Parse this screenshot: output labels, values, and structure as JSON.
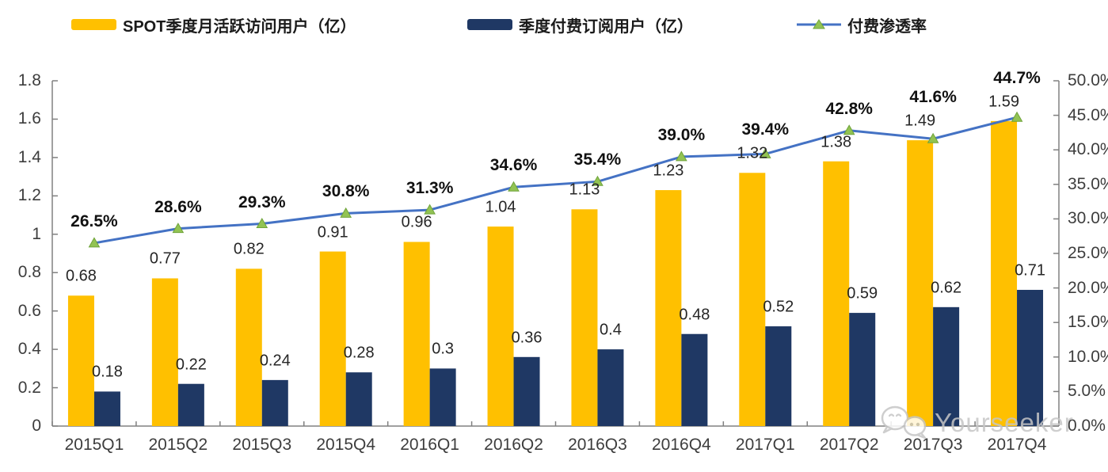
{
  "legend": {
    "items": [
      {
        "label": "SPOT季度月活跃访问用户（亿）",
        "type": "bar",
        "color": "#FFC000"
      },
      {
        "label": "季度付费订阅用户（亿）",
        "type": "bar",
        "color": "#1F3864"
      },
      {
        "label": "付费渗透率",
        "type": "line",
        "color": "#4472C4",
        "marker_color": "#92C353"
      }
    ]
  },
  "watermark": {
    "text": "Yourseeker",
    "icon": "wechat-icon",
    "color": "#c6c6c6"
  },
  "chart_data": {
    "type": "bar",
    "subtype": "grouped-bars-with-line-overlay",
    "title": "",
    "categories": [
      "2015Q1",
      "2015Q2",
      "2015Q3",
      "2015Q4",
      "2016Q1",
      "2016Q2",
      "2016Q3",
      "2016Q4",
      "2017Q1",
      "2017Q2",
      "2017Q3",
      "2017Q4"
    ],
    "series": [
      {
        "name": "SPOT季度月活跃访问用户（亿）",
        "type": "bar",
        "axis": "left",
        "color": "#FFC000",
        "values": [
          0.68,
          0.77,
          0.82,
          0.91,
          0.96,
          1.04,
          1.13,
          1.23,
          1.32,
          1.38,
          1.49,
          1.59
        ]
      },
      {
        "name": "季度付费订阅用户（亿）",
        "type": "bar",
        "axis": "left",
        "color": "#1F3864",
        "values": [
          0.18,
          0.22,
          0.24,
          0.28,
          0.3,
          0.36,
          0.4,
          0.48,
          0.52,
          0.59,
          0.62,
          0.71
        ]
      },
      {
        "name": "付费渗透率",
        "type": "line",
        "axis": "right",
        "color": "#4472C4",
        "marker": "triangle",
        "marker_color": "#92C353",
        "marker_edge": "#6FA33A",
        "values": [
          26.5,
          28.6,
          29.3,
          30.8,
          31.3,
          34.6,
          35.4,
          39.0,
          39.4,
          42.8,
          41.6,
          44.7
        ],
        "labels": [
          "26.5%",
          "28.6%",
          "29.3%",
          "30.8%",
          "31.3%",
          "34.6%",
          "35.4%",
          "39.0%",
          "39.4%",
          "42.8%",
          "41.6%",
          "44.7%"
        ]
      }
    ],
    "left_axis": {
      "min": 0,
      "max": 1.8,
      "tick_values": [
        0,
        0.2,
        0.4,
        0.6,
        0.8,
        1,
        1.2,
        1.4,
        1.6,
        1.8
      ],
      "tick_labels": [
        "0",
        "0.2",
        "0.4",
        "0.6",
        "0.8",
        "1",
        "1.2",
        "1.4",
        "1.6",
        "1.8"
      ]
    },
    "right_axis": {
      "min": 0,
      "max": 50,
      "tick_values": [
        0,
        5,
        10,
        15,
        20,
        25,
        30,
        35,
        40,
        45,
        50
      ],
      "tick_labels": [
        "0.0%",
        "5.0%",
        "10.0%",
        "15.0%",
        "20.0%",
        "25.0%",
        "30.0%",
        "35.0%",
        "40.0%",
        "45.0%",
        "50.0%"
      ]
    },
    "grid": false,
    "legend_position": "top",
    "axis_color": "#808080"
  }
}
